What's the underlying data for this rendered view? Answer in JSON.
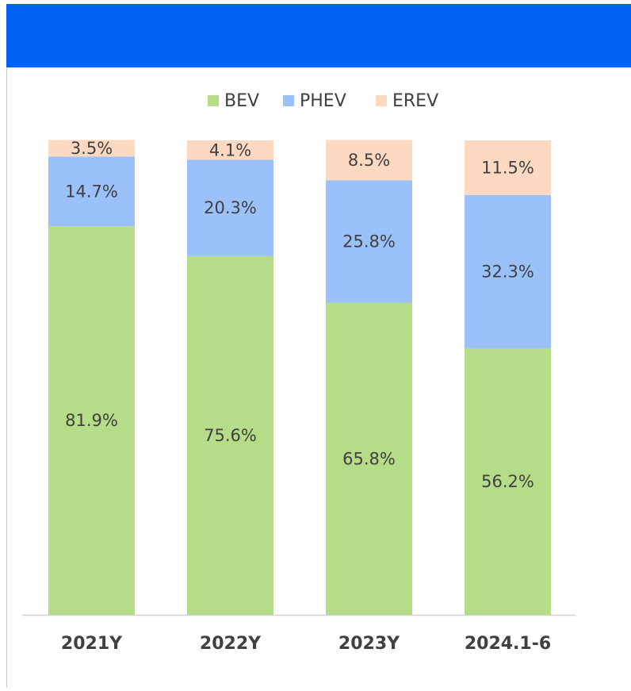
{
  "chart_data": {
    "type": "stacked_bar",
    "categories": [
      "2021Y",
      "2022Y",
      "2023Y",
      "2024.1-6"
    ],
    "series": [
      {
        "name": "BEV",
        "color": "#b5dc87",
        "values": [
          81.9,
          75.6,
          65.8,
          56.2
        ],
        "value_labels": [
          "81.9%",
          "75.6%",
          "65.8%",
          "56.2%"
        ]
      },
      {
        "name": "PHEV",
        "color": "#9ac1fa",
        "values": [
          14.7,
          20.3,
          25.8,
          32.3
        ],
        "value_labels": [
          "14.7%",
          "20.3%",
          "25.8%",
          "32.3%"
        ]
      },
      {
        "name": "EREV",
        "color": "#fdd9c1",
        "values": [
          3.5,
          4.1,
          8.5,
          11.5
        ],
        "value_labels": [
          "3.5%",
          "4.1%",
          "8.5%",
          "11.5%"
        ]
      }
    ],
    "ylim": [
      0,
      100
    ],
    "legend": "top"
  }
}
